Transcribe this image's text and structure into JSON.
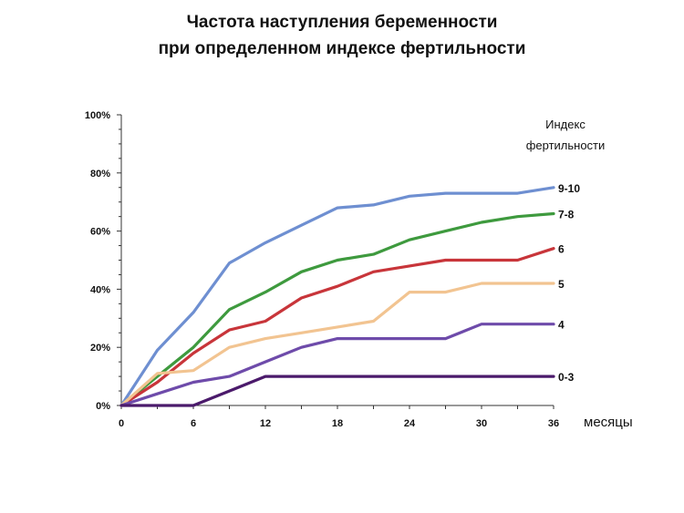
{
  "title": "Частота наступления беременности",
  "subtitle": "при определенном индексе фертильности",
  "chart_data": {
    "type": "line",
    "title": "Частота наступления беременности",
    "subtitle": "при определенном индексе фертильности",
    "xlabel": "месяцы",
    "ylabel": "",
    "xlim": [
      0,
      36
    ],
    "ylim": [
      0,
      100
    ],
    "x_ticks": [
      0,
      6,
      12,
      18,
      24,
      30,
      36
    ],
    "y_ticks": [
      0,
      20,
      40,
      60,
      80,
      100
    ],
    "y_tick_labels": [
      "0%",
      "20%",
      "40%",
      "60%",
      "80%",
      "100%"
    ],
    "legend_title_line1": "Индекс",
    "legend_title_line2": "фертильности",
    "legend_placement": "right",
    "grid": false,
    "series": [
      {
        "name": "9-10",
        "color": "#6E8FD1",
        "x": [
          0,
          3,
          6,
          9,
          12,
          15,
          18,
          21,
          24,
          27,
          30,
          33,
          36
        ],
        "y": [
          0,
          19,
          32,
          49,
          56,
          62,
          68,
          69,
          72,
          73,
          73,
          73,
          75
        ]
      },
      {
        "name": "7-8",
        "color": "#3E9A3E",
        "x": [
          0,
          3,
          6,
          9,
          12,
          15,
          18,
          21,
          24,
          27,
          30,
          33,
          36
        ],
        "y": [
          0,
          10,
          20,
          33,
          39,
          46,
          50,
          52,
          57,
          60,
          63,
          65,
          66
        ]
      },
      {
        "name": "6",
        "color": "#C8353A",
        "x": [
          0,
          3,
          6,
          9,
          12,
          15,
          18,
          21,
          24,
          27,
          30,
          33,
          36
        ],
        "y": [
          0,
          8,
          18,
          26,
          29,
          37,
          41,
          46,
          48,
          50,
          50,
          50,
          54
        ]
      },
      {
        "name": "5",
        "color": "#F2C491",
        "x": [
          0,
          3,
          6,
          9,
          12,
          15,
          18,
          21,
          24,
          27,
          30,
          33,
          36
        ],
        "y": [
          0,
          11,
          12,
          20,
          23,
          25,
          27,
          29,
          39,
          39,
          42,
          42,
          42
        ]
      },
      {
        "name": "4",
        "color": "#6E4BAA",
        "x": [
          0,
          3,
          6,
          9,
          12,
          15,
          18,
          21,
          24,
          27,
          30,
          33,
          36
        ],
        "y": [
          0,
          4,
          8,
          10,
          15,
          20,
          23,
          23,
          23,
          23,
          28,
          28,
          28
        ]
      },
      {
        "name": "0-3",
        "color": "#4B1A6B",
        "x": [
          0,
          3,
          6,
          9,
          12,
          15,
          18,
          21,
          24,
          27,
          30,
          33,
          36
        ],
        "y": [
          0,
          0,
          0,
          5,
          10,
          10,
          10,
          10,
          10,
          10,
          10,
          10,
          10
        ]
      }
    ]
  }
}
